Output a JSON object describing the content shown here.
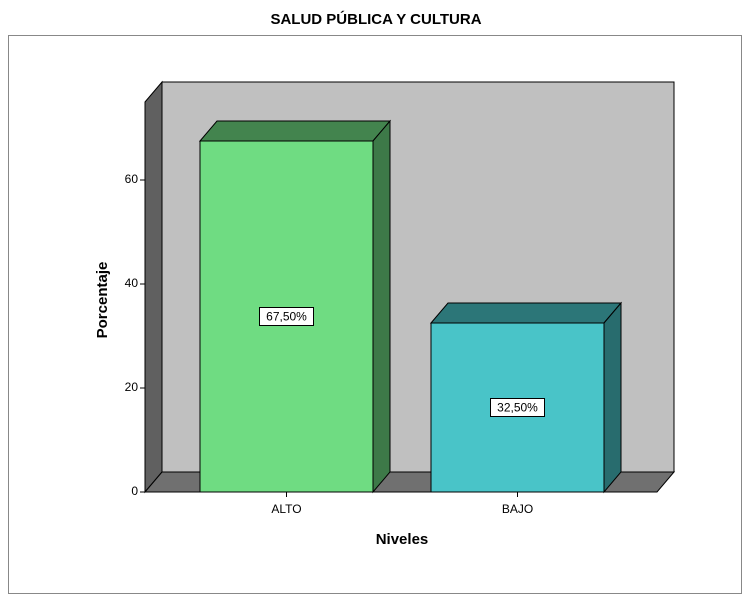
{
  "chart_data": {
    "type": "bar3d",
    "title": "SALUD PÚBLICA Y CULTURA",
    "x_label": "Niveles",
    "y_label": "Porcentaje",
    "categories": [
      "ALTO",
      "BAJO"
    ],
    "values": [
      67.5,
      32.5
    ],
    "value_labels": [
      "67,50%",
      "32,50%"
    ],
    "colors": [
      "#6fdc82",
      "#49c4c8"
    ],
    "ylim": [
      0,
      75
    ],
    "yticks": [
      0,
      20,
      40,
      60
    ]
  }
}
